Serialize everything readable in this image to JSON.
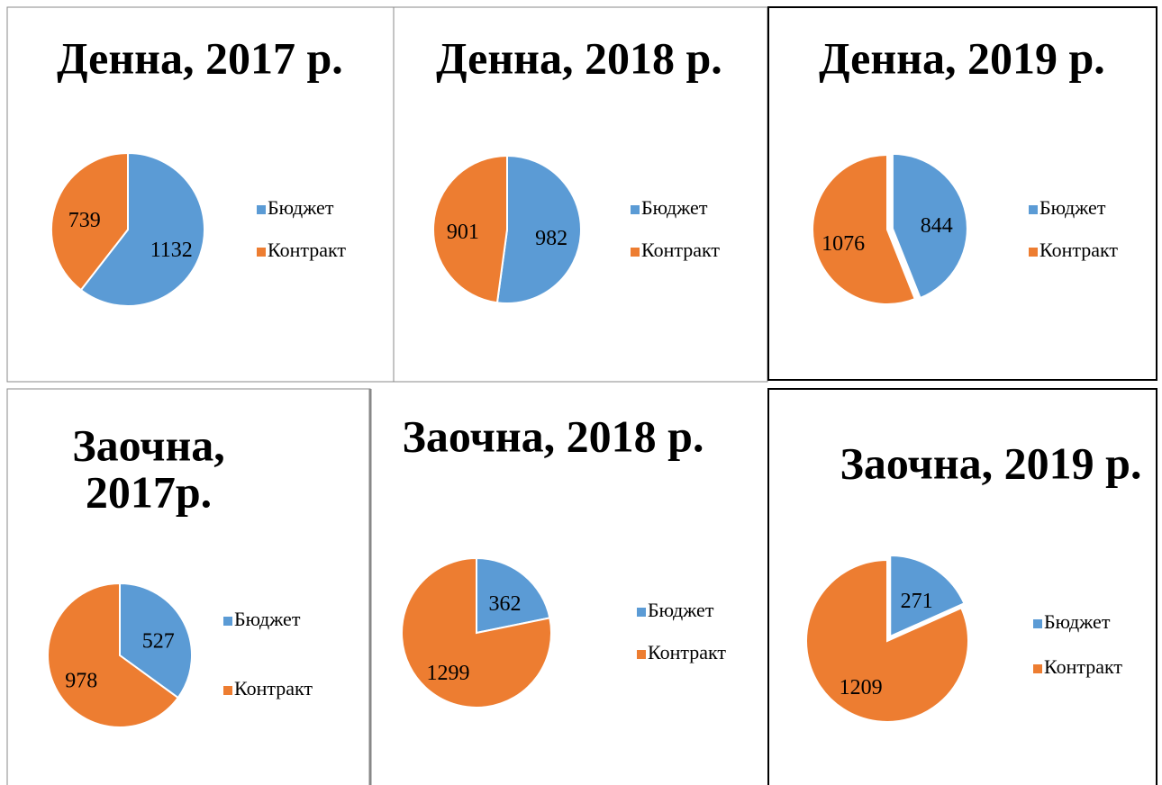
{
  "chart_data": [
    {
      "type": "pie",
      "title": "Денна, 2017 р.",
      "categories": [
        "Бюджет",
        "Контракт"
      ],
      "values": [
        1132,
        739
      ],
      "colors": [
        "#5b9bd5",
        "#ed7d31"
      ],
      "explode": false
    },
    {
      "type": "pie",
      "title": "Денна, 2018 р.",
      "categories": [
        "Бюджет",
        "Контракт"
      ],
      "values": [
        982,
        901
      ],
      "colors": [
        "#5b9bd5",
        "#ed7d31"
      ],
      "explode": false
    },
    {
      "type": "pie",
      "title": "Денна, 2019 р.",
      "categories": [
        "Бюджет",
        "Контракт"
      ],
      "values": [
        844,
        1076
      ],
      "colors": [
        "#5b9bd5",
        "#ed7d31"
      ],
      "explode": true
    },
    {
      "type": "pie",
      "title": [
        "Заочна,",
        "2017р."
      ],
      "categories": [
        "Бюджет",
        "Контракт"
      ],
      "values": [
        527,
        978
      ],
      "colors": [
        "#5b9bd5",
        "#ed7d31"
      ],
      "explode": false
    },
    {
      "type": "pie",
      "title": "Заочна, 2018 р.",
      "categories": [
        "Бюджет",
        "Контракт"
      ],
      "values": [
        362,
        1299
      ],
      "colors": [
        "#5b9bd5",
        "#ed7d31"
      ],
      "explode": false
    },
    {
      "type": "pie",
      "title": "Заочна, 2019 р.",
      "categories": [
        "Бюджет",
        "Контракт"
      ],
      "values": [
        271,
        1209
      ],
      "colors": [
        "#5b9bd5",
        "#ed7d31"
      ],
      "explode": true
    }
  ]
}
